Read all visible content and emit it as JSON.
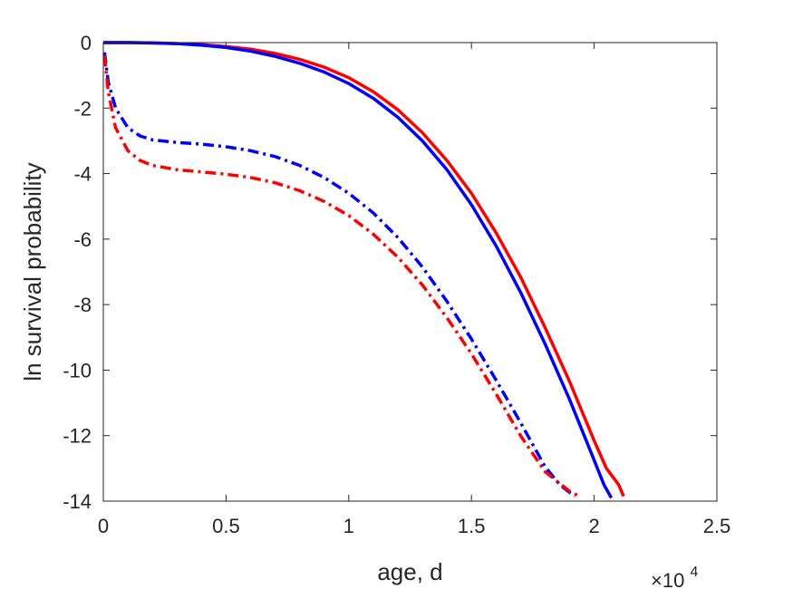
{
  "chart_data": {
    "type": "line",
    "title": "",
    "xlabel": "age, d",
    "ylabel": "ln survival probability",
    "x_exponent_label": {
      "base": "×10",
      "power": "4"
    },
    "xlim": [
      0,
      25000
    ],
    "ylim": [
      -14,
      0
    ],
    "x_ticks": [
      0,
      5000,
      10000,
      15000,
      20000,
      25000
    ],
    "x_tick_labels": [
      "0",
      "0.5",
      "1",
      "1.5",
      "2",
      "2.5"
    ],
    "y_ticks": [
      0,
      -2,
      -4,
      -6,
      -8,
      -10,
      -12,
      -14
    ],
    "y_tick_labels": [
      "0",
      "-2",
      "-4",
      "-6",
      "-8",
      "-10",
      "-12",
      "-14"
    ],
    "grid": false,
    "legend": "none",
    "series": [
      {
        "color": "#ff0000",
        "line_style": "solid",
        "x": [
          0,
          1000,
          2000,
          3000,
          4000,
          5000,
          6000,
          7000,
          8000,
          9000,
          10000,
          11000,
          12000,
          13000,
          14000,
          15000,
          16000,
          17000,
          18000,
          19000,
          20000,
          20500,
          21000,
          21200
        ],
        "y": [
          0,
          0,
          -0.01,
          -0.03,
          -0.06,
          -0.12,
          -0.2,
          -0.33,
          -0.51,
          -0.75,
          -1.07,
          -1.5,
          -2.05,
          -2.75,
          -3.6,
          -4.6,
          -5.8,
          -7.15,
          -8.7,
          -10.35,
          -12.15,
          -13.0,
          -13.5,
          -13.85
        ]
      },
      {
        "color": "#0000ff",
        "line_style": "solid",
        "x": [
          0,
          1000,
          2000,
          3000,
          4000,
          5000,
          6000,
          7000,
          8000,
          9000,
          10000,
          11000,
          12000,
          13000,
          14000,
          15000,
          16000,
          17000,
          18000,
          19000,
          20000,
          20400,
          20700
        ],
        "y": [
          0,
          0,
          -0.01,
          -0.03,
          -0.08,
          -0.15,
          -0.26,
          -0.42,
          -0.63,
          -0.9,
          -1.25,
          -1.7,
          -2.28,
          -3.0,
          -3.88,
          -4.95,
          -6.2,
          -7.62,
          -9.2,
          -10.9,
          -12.75,
          -13.5,
          -13.9
        ]
      },
      {
        "color": "#0000ff",
        "line_style": "dash-dot",
        "x": [
          50,
          200,
          500,
          1000,
          1500,
          2000,
          3000,
          4000,
          5000,
          6000,
          7000,
          8000,
          9000,
          10000,
          11000,
          12000,
          13000,
          14000,
          15000,
          16000,
          17000,
          18000,
          18600,
          19200
        ],
        "y": [
          -0.3,
          -1.2,
          -2.0,
          -2.6,
          -2.85,
          -2.97,
          -3.05,
          -3.1,
          -3.18,
          -3.3,
          -3.48,
          -3.75,
          -4.12,
          -4.6,
          -5.2,
          -5.95,
          -6.85,
          -7.9,
          -9.05,
          -10.3,
          -11.6,
          -12.95,
          -13.5,
          -13.85
        ]
      },
      {
        "color": "#ff0000",
        "line_style": "dash-dot",
        "x": [
          50,
          200,
          500,
          1000,
          1500,
          2000,
          3000,
          4000,
          5000,
          6000,
          7000,
          8000,
          9000,
          10000,
          11000,
          12000,
          13000,
          14000,
          15000,
          16000,
          17000,
          18000,
          19000,
          19400
        ],
        "y": [
          -0.4,
          -1.5,
          -2.6,
          -3.3,
          -3.6,
          -3.75,
          -3.88,
          -3.95,
          -4.02,
          -4.12,
          -4.28,
          -4.52,
          -4.85,
          -5.28,
          -5.85,
          -6.55,
          -7.4,
          -8.4,
          -9.5,
          -10.72,
          -12.0,
          -13.1,
          -13.7,
          -13.85
        ]
      }
    ]
  }
}
